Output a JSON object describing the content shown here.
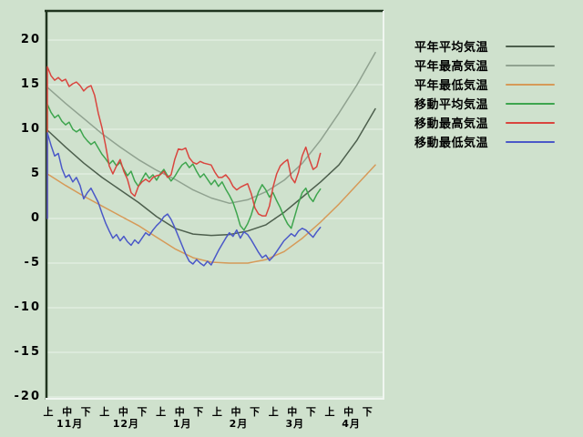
{
  "colors": {
    "background": "#cfe1cd",
    "gridline": "#e9f2e9",
    "frame_dark": "#20341f",
    "frame_light": "#f0f6f0",
    "text": "#000000"
  },
  "chart_data": {
    "type": "line",
    "title": "",
    "xlabel": "",
    "ylabel": "",
    "x_axis": {
      "unit": "10-day period (jun)",
      "period_labels": [
        "上",
        "中",
        "下"
      ],
      "month_labels": [
        "11月",
        "12月",
        "1月",
        "2月",
        "3月",
        "4月"
      ],
      "num_periods": 18
    },
    "y_axis": {
      "ticks": [
        20,
        15,
        10,
        5,
        0,
        -5,
        -10,
        -15,
        -20
      ],
      "range": [
        -20.3,
        23.3
      ]
    },
    "grid": "horizontal white lines",
    "legend_position": "right-top",
    "series": [
      {
        "name": "平年平均気温",
        "key": "normal_mean",
        "color": "#4d5f4d",
        "x_start": -0.05,
        "x_step": 0.971,
        "from_zero": false,
        "values": [
          9.9,
          8.0,
          6.2,
          4.6,
          3.2,
          1.8,
          0.2,
          -1.1,
          -1.75,
          -1.9,
          -1.8,
          -1.4,
          -0.7,
          0.7,
          2.4,
          4.1,
          6.0,
          8.8,
          12.3
        ]
      },
      {
        "name": "平年最高気温",
        "key": "normal_max",
        "color": "#90a290",
        "x_start": -0.05,
        "x_step": 0.971,
        "from_zero": false,
        "values": [
          14.7,
          12.9,
          11.2,
          9.5,
          8.0,
          6.6,
          5.4,
          4.4,
          3.2,
          2.3,
          1.7,
          2.1,
          3.0,
          4.3,
          6.2,
          8.8,
          11.8,
          15.0,
          18.6
        ]
      },
      {
        "name": "平年最低気温",
        "key": "normal_min",
        "color": "#d69a58",
        "x_start": -0.05,
        "x_step": 0.971,
        "from_zero": false,
        "values": [
          5.0,
          3.7,
          2.5,
          1.4,
          0.3,
          -0.8,
          -2.1,
          -3.4,
          -4.4,
          -4.9,
          -5.0,
          -5.0,
          -4.6,
          -3.7,
          -2.2,
          -0.4,
          1.6,
          3.8,
          6.0
        ]
      },
      {
        "name": "移動平均気温",
        "key": "moving_avg",
        "color": "#3ea54e",
        "x_start": -0.05,
        "x_step": 0.194,
        "from_zero": true,
        "values": [
          12.8,
          11.9,
          11.3,
          11.6,
          10.9,
          10.5,
          10.8,
          10.0,
          9.7,
          10.0,
          9.2,
          8.7,
          8.3,
          8.6,
          7.9,
          7.2,
          6.7,
          6.1,
          6.5,
          5.9,
          6.3,
          5.5,
          4.8,
          5.3,
          4.2,
          3.6,
          4.4,
          5.1,
          4.5,
          4.9,
          4.3,
          5.0,
          5.5,
          4.8,
          4.2,
          4.7,
          5.4,
          6.0,
          6.3,
          5.7,
          6.1,
          5.3,
          4.6,
          5.0,
          4.4,
          3.8,
          4.3,
          3.6,
          4.1,
          3.3,
          2.6,
          1.8,
          0.6,
          -0.8,
          -1.3,
          -0.6,
          0.4,
          1.8,
          3.0,
          3.8,
          3.2,
          2.4,
          2.9,
          2.0,
          1.2,
          0.2,
          -0.6,
          -1.1,
          0.3,
          1.7,
          2.9,
          3.4,
          2.4,
          1.9,
          2.7,
          3.3
        ]
      },
      {
        "name": "移動最高気温",
        "key": "moving_max",
        "color": "#d9453e",
        "x_start": -0.05,
        "x_step": 0.194,
        "from_zero": true,
        "values": [
          17.0,
          16.0,
          15.5,
          15.8,
          15.4,
          15.6,
          14.8,
          15.1,
          15.3,
          14.9,
          14.3,
          14.7,
          14.9,
          13.8,
          11.8,
          10.2,
          8.2,
          5.9,
          5.0,
          5.9,
          6.6,
          5.3,
          4.4,
          2.9,
          2.5,
          3.6,
          4.1,
          4.4,
          4.1,
          4.6,
          4.8,
          4.9,
          5.3,
          4.6,
          4.9,
          6.6,
          7.8,
          7.7,
          7.9,
          6.8,
          6.3,
          6.1,
          6.4,
          6.2,
          6.1,
          6.0,
          5.2,
          4.6,
          4.6,
          4.9,
          4.4,
          3.6,
          3.2,
          3.5,
          3.7,
          3.9,
          2.8,
          1.2,
          0.5,
          0.3,
          0.3,
          1.4,
          3.5,
          5.0,
          5.9,
          6.3,
          6.6,
          4.6,
          4.0,
          5.2,
          7.0,
          8.0,
          6.6,
          5.5,
          5.8,
          7.3
        ]
      },
      {
        "name": "移動最低気温",
        "key": "moving_min",
        "color": "#4a58c8",
        "x_start": -0.05,
        "x_step": 0.194,
        "from_zero": true,
        "values": [
          9.6,
          8.2,
          7.0,
          7.3,
          5.6,
          4.6,
          4.9,
          4.1,
          4.6,
          3.7,
          2.2,
          2.9,
          3.4,
          2.6,
          1.8,
          0.6,
          -0.5,
          -1.4,
          -2.2,
          -1.8,
          -2.5,
          -2.0,
          -2.6,
          -3.0,
          -2.4,
          -2.8,
          -2.2,
          -1.6,
          -1.9,
          -1.3,
          -0.8,
          -0.4,
          0.2,
          0.5,
          -0.1,
          -1.0,
          -2.0,
          -3.0,
          -4.0,
          -4.8,
          -5.1,
          -4.6,
          -5.0,
          -5.3,
          -4.8,
          -5.2,
          -4.4,
          -3.6,
          -2.9,
          -2.2,
          -1.6,
          -2.0,
          -1.3,
          -2.2,
          -1.5,
          -1.8,
          -2.4,
          -3.1,
          -3.8,
          -4.4,
          -4.1,
          -4.7,
          -4.3,
          -3.7,
          -3.1,
          -2.5,
          -2.1,
          -1.7,
          -2.0,
          -1.4,
          -1.1,
          -1.3,
          -1.7,
          -2.1,
          -1.5,
          -1.0
        ]
      }
    ]
  }
}
